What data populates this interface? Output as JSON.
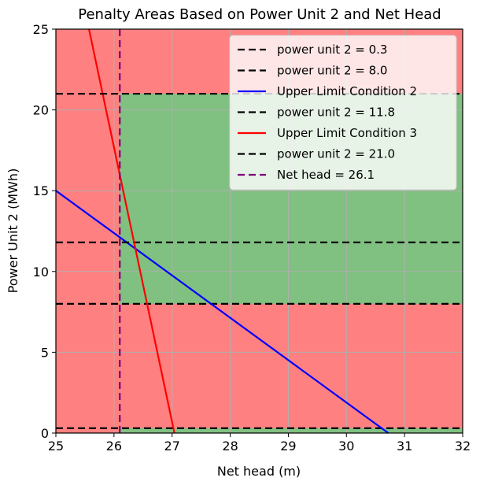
{
  "chart_data": {
    "type": "line",
    "title": "Penalty Areas Based on Power Unit 2 and Net Head",
    "xlabel": "Net head (m)",
    "ylabel": "Power Unit 2 (MWh)",
    "xlim": [
      25,
      32
    ],
    "ylim": [
      0,
      25
    ],
    "xticks": [
      "25",
      "26",
      "27",
      "28",
      "29",
      "30",
      "31",
      "32"
    ],
    "yticks": [
      "0",
      "5",
      "10",
      "15",
      "20",
      "25"
    ],
    "grid": true,
    "legend_position": "top-right",
    "background_color": "#ff8080",
    "regions": [
      {
        "name": "penalty",
        "color": "#ff8080",
        "x_range": [
          25,
          32
        ],
        "y_range": [
          0,
          25
        ]
      },
      {
        "name": "no-penalty",
        "color": "#80c080",
        "x_range": [
          26.1,
          32
        ],
        "y_range": [
          8.0,
          21.0
        ]
      },
      {
        "name": "no-penalty",
        "color": "#80c080",
        "x_range": [
          26.1,
          32
        ],
        "y_range": [
          0.0,
          0.3
        ]
      }
    ],
    "series": [
      {
        "name": "power unit 2 = 0.3",
        "kind": "hline",
        "y": 0.3,
        "color": "#000000",
        "dash": "dashed"
      },
      {
        "name": "power unit 2 = 8.0",
        "kind": "hline",
        "y": 8.0,
        "color": "#000000",
        "dash": "dashed"
      },
      {
        "name": "Upper Limit Condition 2",
        "kind": "line",
        "x": [
          25,
          30.72
        ],
        "y": [
          15.0,
          0.0
        ],
        "color": "#0000ff",
        "dash": "solid"
      },
      {
        "name": "power unit 2 = 11.8",
        "kind": "hline",
        "y": 11.8,
        "color": "#000000",
        "dash": "dashed"
      },
      {
        "name": "Upper Limit Condition 3",
        "kind": "line",
        "x": [
          25.57,
          27.04
        ],
        "y": [
          25.0,
          0.0
        ],
        "color": "#ff0000",
        "dash": "solid"
      },
      {
        "name": "power unit 2 = 21.0",
        "kind": "hline",
        "y": 21.0,
        "color": "#000000",
        "dash": "dashed"
      },
      {
        "name": "Net head = 26.1",
        "kind": "vline",
        "x": 26.1,
        "color": "#800080",
        "dash": "dashed"
      }
    ]
  }
}
